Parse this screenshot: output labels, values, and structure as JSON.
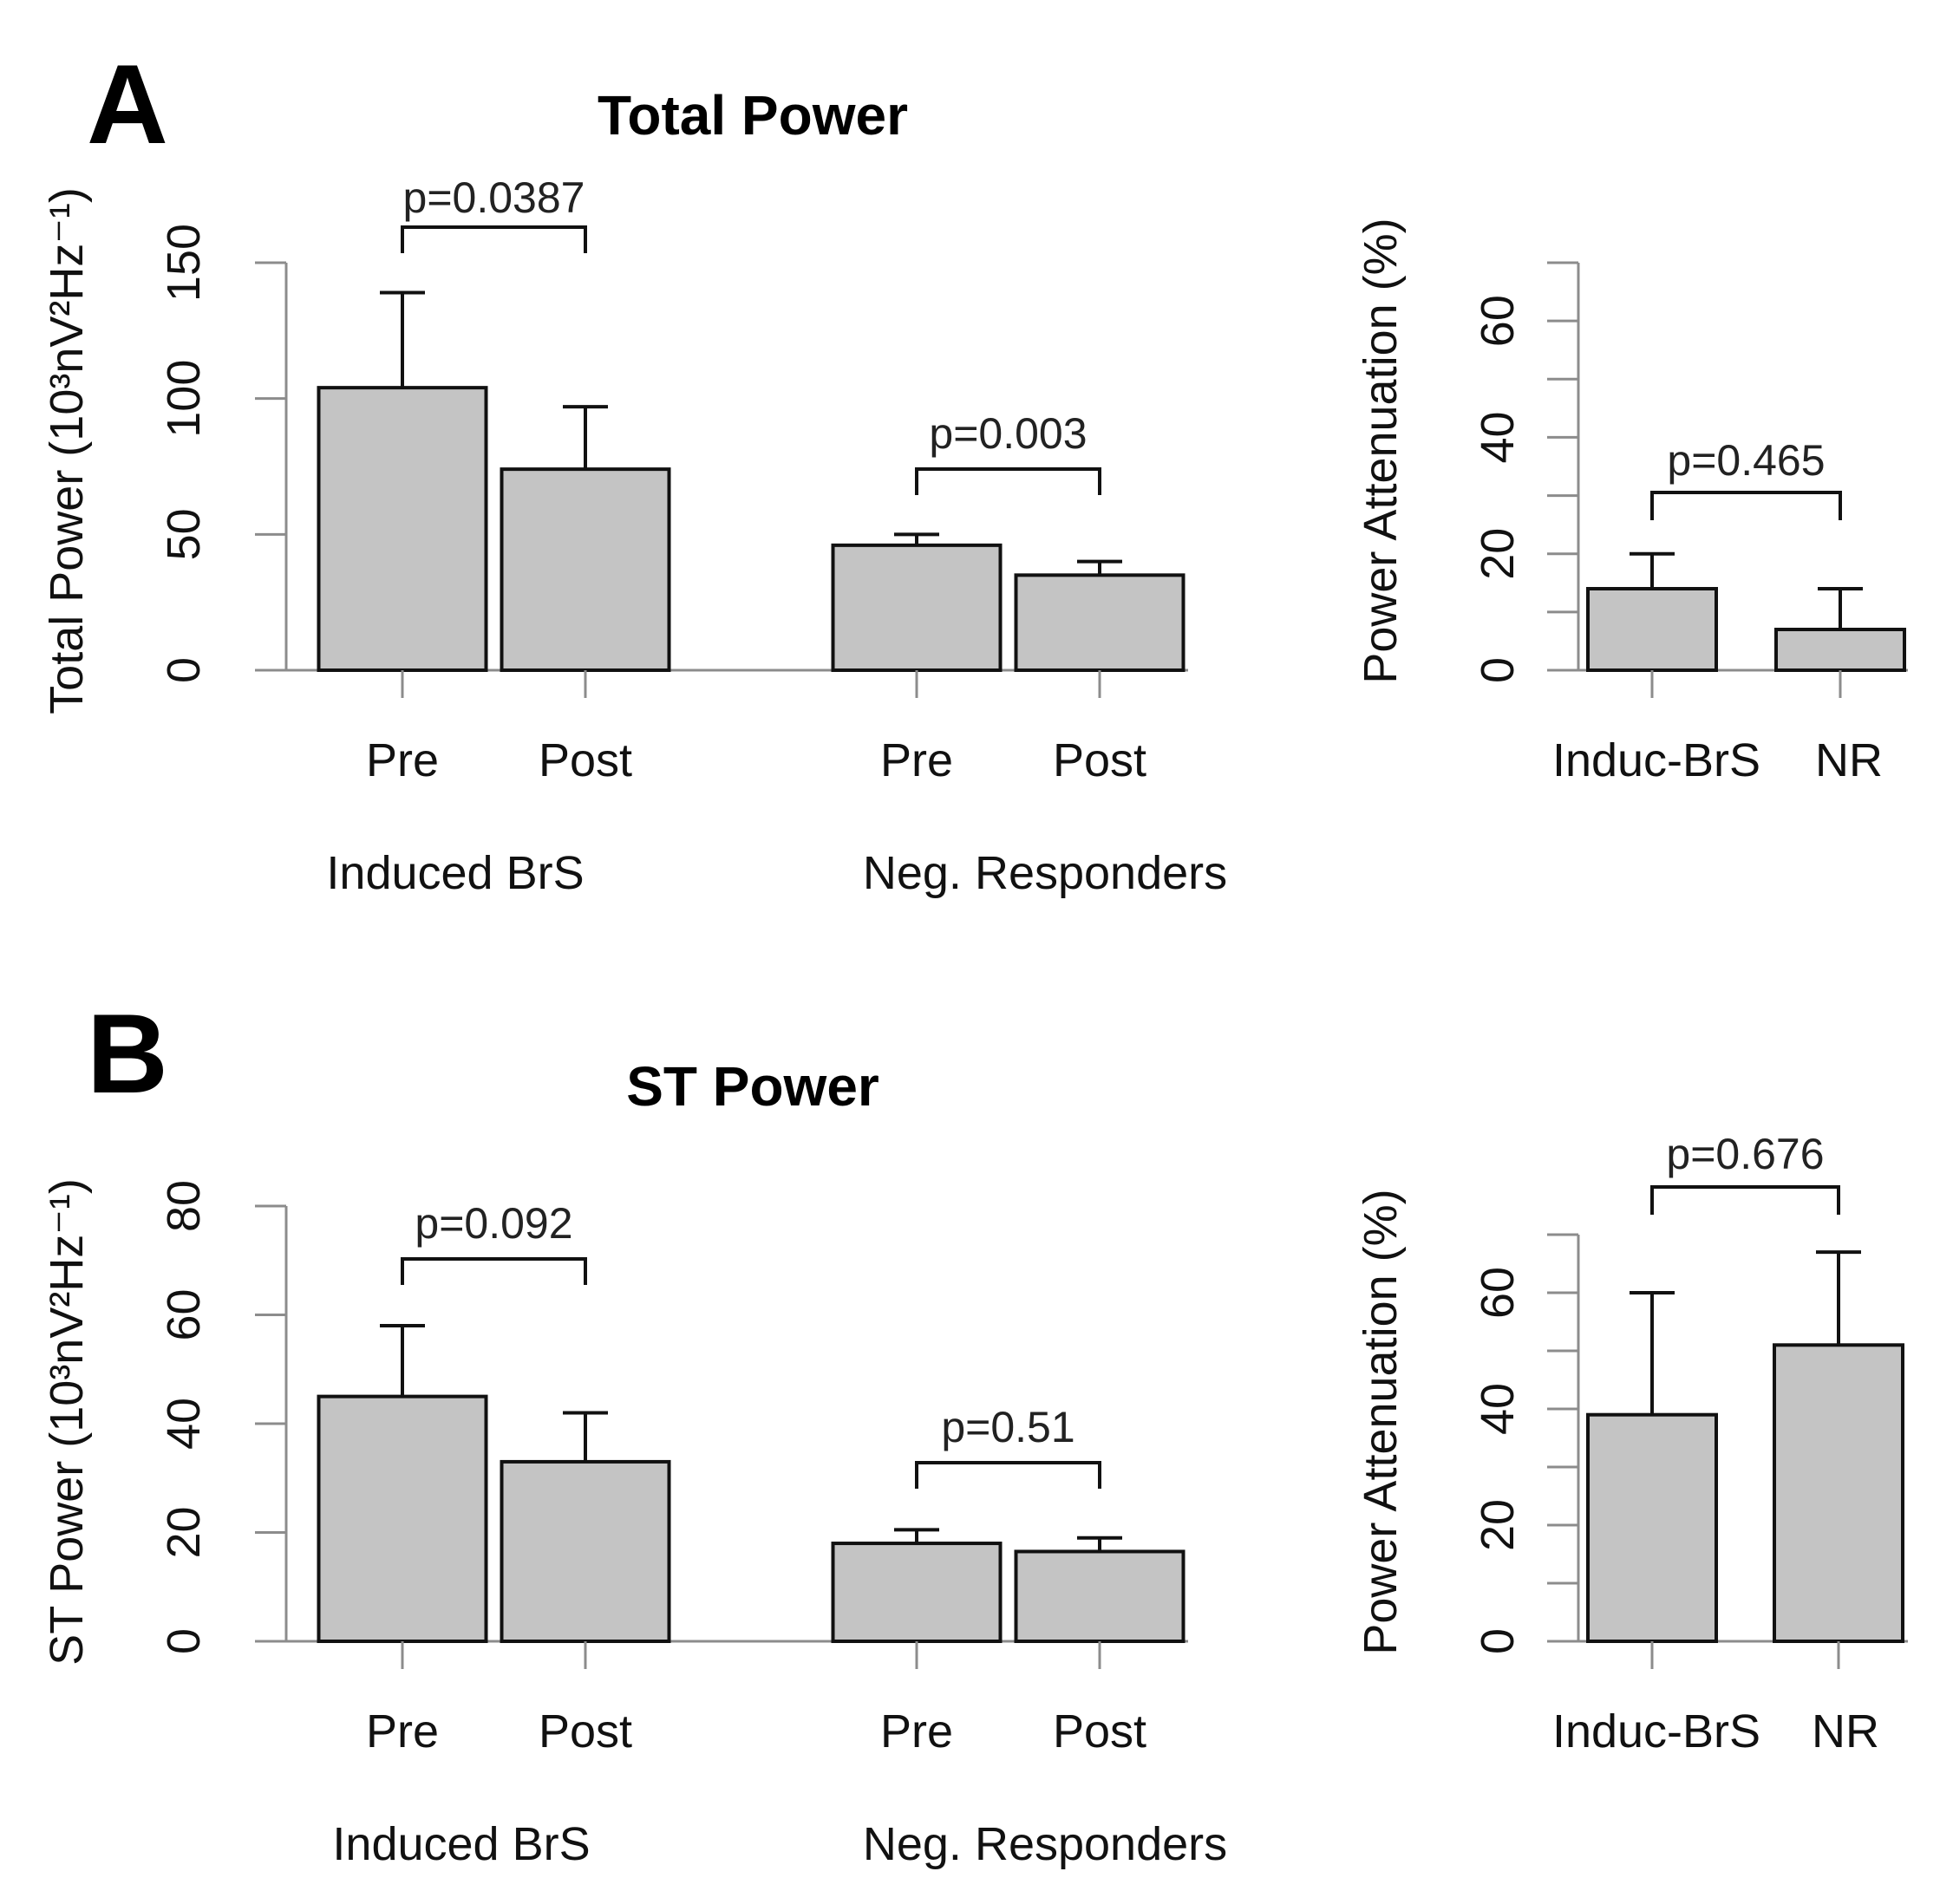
{
  "chart_data": [
    {
      "panel": "A",
      "type": "bar",
      "title": "Total Power",
      "ylabel": "Total Power (10³nV²Hz⁻¹)",
      "ylim": [
        0,
        150
      ],
      "yticks": [
        "0",
        "50",
        "100",
        "150"
      ],
      "groups": [
        "Induced BrS",
        "Neg. Responders"
      ],
      "categories": [
        "Pre",
        "Post",
        "Pre",
        "Post"
      ],
      "values": [
        104,
        74,
        46,
        35
      ],
      "errors_upper": [
        139,
        97,
        50,
        40
      ],
      "pvalues": [
        "p=0.0387",
        "p=0.003"
      ]
    },
    {
      "panel": "A-inset",
      "type": "bar",
      "ylabel": "Power Attenuation (%)",
      "ylim": [
        0,
        70
      ],
      "yticks": [
        "0",
        "20",
        "40",
        "60"
      ],
      "categories": [
        "Induc-BrS",
        "NR"
      ],
      "values": [
        14,
        7
      ],
      "errors_upper": [
        20,
        14
      ],
      "pvalues": [
        "p=0.465"
      ]
    },
    {
      "panel": "B",
      "type": "bar",
      "title": "ST Power",
      "ylabel": "ST Power (10³nV²Hz⁻¹)",
      "ylim": [
        0,
        80
      ],
      "yticks": [
        "0",
        "20",
        "40",
        "60",
        "80"
      ],
      "groups": [
        "Induced BrS",
        "Neg. Responders"
      ],
      "categories": [
        "Pre",
        "Post",
        "Pre",
        "Post"
      ],
      "values": [
        45,
        33,
        18,
        16.5
      ],
      "errors_upper": [
        58,
        42,
        20.5,
        19
      ],
      "pvalues": [
        "p=0.092",
        "p=0.51"
      ]
    },
    {
      "panel": "B-inset",
      "type": "bar",
      "ylabel": "Power Attenuation (%)",
      "ylim": [
        0,
        70
      ],
      "yticks": [
        "0",
        "20",
        "40",
        "60"
      ],
      "categories": [
        "Induc-BrS",
        "NR"
      ],
      "values": [
        39,
        51
      ],
      "errors_upper": [
        60,
        67
      ],
      "pvalues": [
        "p=0.676"
      ]
    }
  ]
}
